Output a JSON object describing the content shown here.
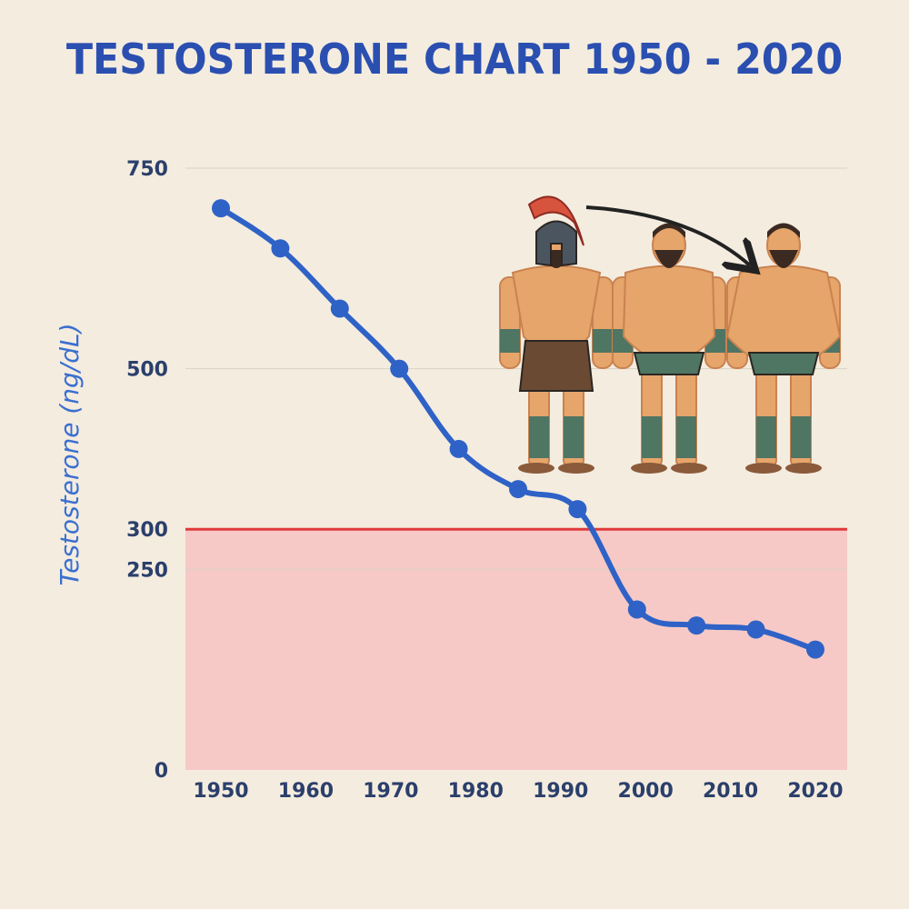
{
  "chart_data": {
    "type": "line",
    "title": "TESTOSTERONE CHART 1950 - 2020",
    "xlabel": "",
    "ylabel": "Testosterone (ng/dL)",
    "x_ticks": [
      "1950",
      "1960",
      "1970",
      "1980",
      "1990",
      "2000",
      "2010",
      "2020"
    ],
    "y_ticks": [
      "0",
      "250",
      "300",
      "500",
      "750"
    ],
    "ylim": [
      0,
      750
    ],
    "threshold": {
      "value": 300,
      "line_color": "#e03a3a",
      "fill_color": "#f6c9c6"
    },
    "grid": true,
    "series": [
      {
        "color": "#2f62c6",
        "points": [
          {
            "x": 1950,
            "y": 700
          },
          {
            "x": 1957,
            "y": 650
          },
          {
            "x": 1964,
            "y": 575
          },
          {
            "x": 1971,
            "y": 500
          },
          {
            "x": 1978,
            "y": 400
          },
          {
            "x": 1985,
            "y": 350
          },
          {
            "x": 1992,
            "y": 325
          },
          {
            "x": 1999,
            "y": 200
          },
          {
            "x": 2006,
            "y": 180
          },
          {
            "x": 2013,
            "y": 175
          },
          {
            "x": 2020,
            "y": 150
          }
        ]
      }
    ]
  },
  "illustration": {
    "name": "warrior-to-overweight-progression",
    "arrow_color": "#222222"
  }
}
